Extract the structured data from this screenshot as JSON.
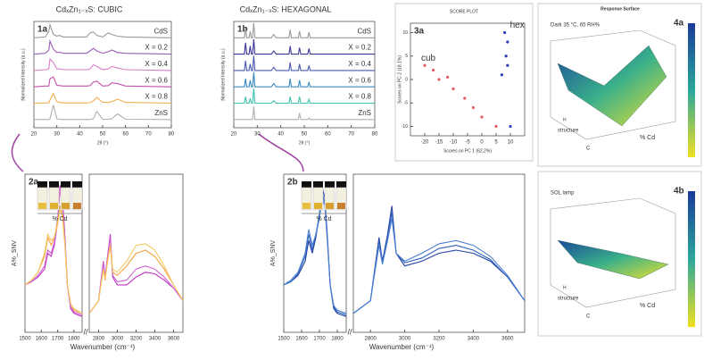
{
  "chart_data": [
    {
      "type": "line",
      "title": "1a",
      "header": "CdₓZn₁₋ₓS: CUBIC",
      "xlabel": "2θ (°)",
      "ylabel": "Normalized Intensity (a.u.)",
      "xlim": [
        20,
        80
      ],
      "xticks": [
        20,
        30,
        40,
        50,
        60,
        70,
        80
      ],
      "ylim": [
        0,
        6.5
      ],
      "x": [
        20,
        25,
        26.5,
        27,
        28.5,
        30,
        31,
        33,
        43,
        44.5,
        46,
        47.5,
        50,
        52.5,
        54,
        56.5,
        60,
        80
      ],
      "series": [
        {
          "name": "CdS",
          "color": "#9a9a9a",
          "values": [
            5.5,
            5.55,
            5.9,
            6.3,
            5.7,
            5.6,
            5.65,
            5.55,
            5.55,
            5.8,
            5.85,
            5.65,
            5.55,
            5.8,
            5.7,
            5.6,
            5.55,
            5.5
          ]
        },
        {
          "name": "X = 0.2",
          "color": "#9a5fb5",
          "values": [
            4.5,
            4.55,
            4.75,
            5.3,
            4.8,
            4.6,
            4.62,
            4.55,
            4.55,
            4.7,
            4.85,
            4.7,
            4.55,
            4.65,
            4.75,
            4.6,
            4.55,
            4.5
          ]
        },
        {
          "name": "X = 0.4",
          "color": "#d77fc8",
          "values": [
            3.5,
            3.55,
            3.6,
            4.2,
            4.0,
            3.6,
            3.6,
            3.55,
            3.55,
            3.6,
            3.85,
            3.75,
            3.55,
            3.6,
            3.75,
            3.65,
            3.55,
            3.5
          ]
        },
        {
          "name": "X = 0.6",
          "color": "#c44fa8",
          "values": [
            2.5,
            2.55,
            2.55,
            3.0,
            3.1,
            2.6,
            2.58,
            2.55,
            2.55,
            2.57,
            2.8,
            2.85,
            2.55,
            2.58,
            2.75,
            2.7,
            2.55,
            2.5
          ]
        },
        {
          "name": "X = 0.8",
          "color": "#f0b050",
          "values": [
            1.5,
            1.52,
            1.52,
            1.7,
            2.1,
            1.6,
            1.55,
            1.52,
            1.52,
            1.53,
            1.65,
            1.85,
            1.55,
            1.55,
            1.6,
            1.75,
            1.55,
            1.5
          ]
        },
        {
          "name": "ZnS",
          "color": "#b0b0b0",
          "values": [
            0.5,
            0.5,
            0.5,
            0.55,
            1.4,
            0.55,
            0.52,
            0.5,
            0.5,
            0.5,
            0.55,
            1.0,
            0.52,
            0.52,
            0.55,
            0.85,
            0.52,
            0.5
          ]
        }
      ]
    },
    {
      "type": "line",
      "title": "1b",
      "header": "CdₓZn₁₋ₓS: HEXAGONAL",
      "xlabel": "2θ (°)",
      "ylabel": "Normalized Intensity (a.u.)",
      "xlim": [
        20,
        80
      ],
      "xticks": [
        20,
        30,
        40,
        50,
        60,
        70,
        80
      ],
      "ylim": [
        0,
        6.5
      ],
      "x": [
        20,
        24.5,
        25,
        25.5,
        26.5,
        27,
        27.5,
        28,
        28.5,
        29,
        36,
        37,
        38,
        43.5,
        44,
        44.5,
        47.5,
        48,
        48.5,
        51.5,
        52,
        52.5,
        60,
        80
      ],
      "series": [
        {
          "name": "CdS",
          "color": "#9a9a9a",
          "values": [
            5.5,
            5.5,
            6.1,
            5.5,
            5.5,
            5.9,
            5.5,
            5.5,
            6.4,
            5.5,
            5.5,
            5.7,
            5.5,
            5.5,
            6.0,
            5.5,
            5.5,
            5.9,
            5.5,
            5.5,
            5.85,
            5.5,
            5.5,
            5.5
          ]
        },
        {
          "name": "X = 0.2",
          "color": "#3a3a9a",
          "values": [
            4.5,
            4.5,
            5.2,
            4.5,
            4.5,
            5.0,
            4.5,
            4.5,
            5.4,
            4.5,
            4.5,
            4.7,
            4.5,
            4.5,
            5.0,
            4.5,
            4.5,
            4.9,
            4.5,
            4.5,
            4.85,
            4.5,
            4.5,
            4.5
          ]
        },
        {
          "name": "X = 0.4",
          "color": "#4a5ab0",
          "values": [
            3.5,
            3.5,
            4.1,
            3.5,
            3.5,
            3.9,
            3.5,
            3.5,
            4.4,
            3.5,
            3.5,
            3.7,
            3.5,
            3.5,
            4.0,
            3.5,
            3.5,
            3.9,
            3.5,
            3.5,
            3.8,
            3.5,
            3.5,
            3.5
          ]
        },
        {
          "name": "X = 0.6",
          "color": "#3a8ac0",
          "values": [
            2.5,
            2.5,
            3.0,
            2.5,
            2.5,
            2.9,
            2.5,
            2.5,
            3.4,
            2.5,
            2.5,
            2.7,
            2.5,
            2.5,
            3.0,
            2.5,
            2.5,
            2.9,
            2.5,
            2.5,
            2.8,
            2.5,
            2.5,
            2.5
          ]
        },
        {
          "name": "X = 0.8",
          "color": "#40c0b0",
          "values": [
            1.5,
            1.5,
            1.9,
            1.5,
            1.5,
            1.8,
            1.5,
            1.5,
            2.4,
            1.5,
            1.5,
            1.65,
            1.5,
            1.5,
            1.9,
            1.5,
            1.5,
            1.9,
            1.5,
            1.5,
            1.75,
            1.5,
            1.5,
            1.5
          ]
        },
        {
          "name": "ZnS",
          "color": "#b0b0b0",
          "values": [
            0.5,
            0.5,
            0.5,
            0.5,
            0.5,
            0.5,
            0.5,
            0.5,
            1.3,
            0.5,
            0.5,
            0.5,
            0.5,
            0.5,
            0.5,
            0.5,
            0.5,
            0.9,
            0.5,
            0.5,
            0.6,
            0.5,
            0.5,
            0.5
          ]
        }
      ]
    },
    {
      "type": "scatter",
      "title": "3a",
      "header": "SCORE PLOT",
      "xlabel": "Scores on PC 1 (62.2%)",
      "ylabel": "Scores on PC 2 (18.1%)",
      "xlim": [
        -25,
        15
      ],
      "xticks": [
        -20,
        -15,
        -10,
        -5,
        0,
        5,
        10
      ],
      "ylim": [
        -12,
        12
      ],
      "yticks": [
        -10,
        -5,
        0,
        5,
        10
      ],
      "series": [
        {
          "name": "cub",
          "color": "#e06060",
          "x": [
            -20,
            -17,
            -15,
            -12,
            -10,
            -6,
            -3,
            0,
            5
          ],
          "values": [
            3,
            2,
            0,
            0.5,
            -2,
            -4,
            -6,
            -8,
            -10
          ]
        },
        {
          "name": "hex",
          "color": "#3040c0",
          "x": [
            8,
            9,
            8.5,
            9,
            7,
            10
          ],
          "values": [
            10,
            8,
            5,
            3,
            1,
            -10
          ]
        }
      ]
    },
    {
      "type": "line",
      "title": "2a",
      "ylabel": "A%_SNV",
      "inset_label": "% Cd",
      "xlim": [
        1500,
        1850
      ],
      "xticks": [
        1500,
        1600,
        1700,
        1800
      ],
      "ylim": [
        0,
        1
      ],
      "x": [
        1500,
        1540,
        1580,
        1620,
        1640,
        1660,
        1680,
        1700,
        1715,
        1730,
        1745,
        1760,
        1780,
        1800,
        1850
      ],
      "series": [
        {
          "color": "#c030c0",
          "values": [
            0.3,
            0.32,
            0.35,
            0.4,
            0.5,
            0.48,
            0.55,
            0.7,
            0.93,
            0.85,
            0.6,
            0.3,
            0.15,
            0.12,
            0.1
          ]
        },
        {
          "color": "#d060d0",
          "values": [
            0.3,
            0.32,
            0.36,
            0.42,
            0.52,
            0.5,
            0.57,
            0.72,
            0.9,
            0.82,
            0.58,
            0.3,
            0.16,
            0.13,
            0.11
          ]
        },
        {
          "color": "#f0a040",
          "values": [
            0.3,
            0.33,
            0.38,
            0.48,
            0.6,
            0.55,
            0.6,
            0.7,
            0.8,
            0.75,
            0.55,
            0.3,
            0.18,
            0.14,
            0.12
          ]
        },
        {
          "color": "#f5c860",
          "values": [
            0.3,
            0.33,
            0.38,
            0.5,
            0.62,
            0.58,
            0.6,
            0.68,
            0.78,
            0.72,
            0.55,
            0.3,
            0.18,
            0.15,
            0.12
          ]
        }
      ]
    },
    {
      "type": "line",
      "xlabel": "Wavenumber (cm⁻¹)",
      "xlim": [
        2700,
        3700
      ],
      "xticks": [
        2800,
        3000,
        3200,
        3400,
        3600
      ],
      "ylim": [
        0,
        1
      ],
      "x": [
        2700,
        2800,
        2850,
        2870,
        2900,
        2925,
        2950,
        3000,
        3100,
        3200,
        3300,
        3400,
        3500,
        3600,
        3700
      ],
      "series": [
        {
          "color": "#c030c0",
          "values": [
            0.12,
            0.2,
            0.45,
            0.35,
            0.5,
            0.62,
            0.35,
            0.3,
            0.3,
            0.35,
            0.38,
            0.37,
            0.33,
            0.28,
            0.2
          ]
        },
        {
          "color": "#d060d0",
          "values": [
            0.12,
            0.2,
            0.44,
            0.34,
            0.5,
            0.6,
            0.36,
            0.32,
            0.33,
            0.4,
            0.42,
            0.4,
            0.35,
            0.28,
            0.2
          ]
        },
        {
          "color": "#f0a040",
          "values": [
            0.12,
            0.2,
            0.4,
            0.33,
            0.47,
            0.55,
            0.38,
            0.36,
            0.42,
            0.5,
            0.52,
            0.48,
            0.4,
            0.3,
            0.2
          ]
        },
        {
          "color": "#f5c860",
          "values": [
            0.12,
            0.2,
            0.4,
            0.34,
            0.46,
            0.54,
            0.4,
            0.38,
            0.45,
            0.55,
            0.56,
            0.52,
            0.42,
            0.3,
            0.2
          ]
        }
      ]
    },
    {
      "type": "line",
      "title": "2b",
      "ylabel": "A%_SNV",
      "inset_label": "% Cd",
      "xlim": [
        1500,
        1850
      ],
      "xticks": [
        1500,
        1600,
        1700,
        1800
      ],
      "ylim": [
        0,
        1
      ],
      "x": [
        1500,
        1540,
        1580,
        1620,
        1640,
        1660,
        1680,
        1700,
        1715,
        1730,
        1745,
        1760,
        1780,
        1800,
        1850
      ],
      "series": [
        {
          "color": "#2040a0",
          "values": [
            0.3,
            0.32,
            0.36,
            0.45,
            0.58,
            0.5,
            0.6,
            0.75,
            0.92,
            0.85,
            0.6,
            0.3,
            0.15,
            0.12,
            0.1
          ]
        },
        {
          "color": "#3060c0",
          "values": [
            0.3,
            0.32,
            0.37,
            0.48,
            0.62,
            0.52,
            0.62,
            0.74,
            0.88,
            0.82,
            0.58,
            0.3,
            0.16,
            0.13,
            0.11
          ]
        },
        {
          "color": "#4a80d0",
          "values": [
            0.3,
            0.33,
            0.38,
            0.5,
            0.65,
            0.55,
            0.62,
            0.72,
            0.85,
            0.8,
            0.57,
            0.3,
            0.17,
            0.14,
            0.12
          ]
        }
      ]
    },
    {
      "type": "line",
      "xlabel": "Wavenumber (cm⁻¹)",
      "xlim": [
        2700,
        3700
      ],
      "xticks": [
        2800,
        3000,
        3200,
        3400,
        3600
      ],
      "ylim": [
        0,
        1
      ],
      "x": [
        2700,
        2800,
        2850,
        2870,
        2900,
        2925,
        2950,
        3000,
        3100,
        3200,
        3300,
        3400,
        3500,
        3600,
        3700
      ],
      "series": [
        {
          "color": "#2040a0",
          "values": [
            0.12,
            0.2,
            0.6,
            0.45,
            0.62,
            0.8,
            0.5,
            0.42,
            0.45,
            0.5,
            0.52,
            0.5,
            0.45,
            0.35,
            0.2
          ]
        },
        {
          "color": "#3060c0",
          "values": [
            0.12,
            0.2,
            0.58,
            0.44,
            0.6,
            0.76,
            0.5,
            0.44,
            0.47,
            0.53,
            0.55,
            0.52,
            0.46,
            0.35,
            0.2
          ]
        },
        {
          "color": "#4a80d0",
          "values": [
            0.12,
            0.2,
            0.55,
            0.43,
            0.58,
            0.72,
            0.5,
            0.45,
            0.5,
            0.56,
            0.58,
            0.55,
            0.48,
            0.36,
            0.2
          ]
        }
      ]
    },
    {
      "type": "surface",
      "title": "4a",
      "header": "Response Surface",
      "subtitle": "Dark 35 °C, 65 RH%",
      "xlabel": "structure",
      "ylabel": "% Cd",
      "levels": [
        "H",
        "C"
      ]
    },
    {
      "type": "surface",
      "title": "4b",
      "subtitle": "SOL lamp",
      "xlabel": "structure",
      "ylabel": "% Cd",
      "levels": [
        "H",
        "C"
      ]
    }
  ]
}
